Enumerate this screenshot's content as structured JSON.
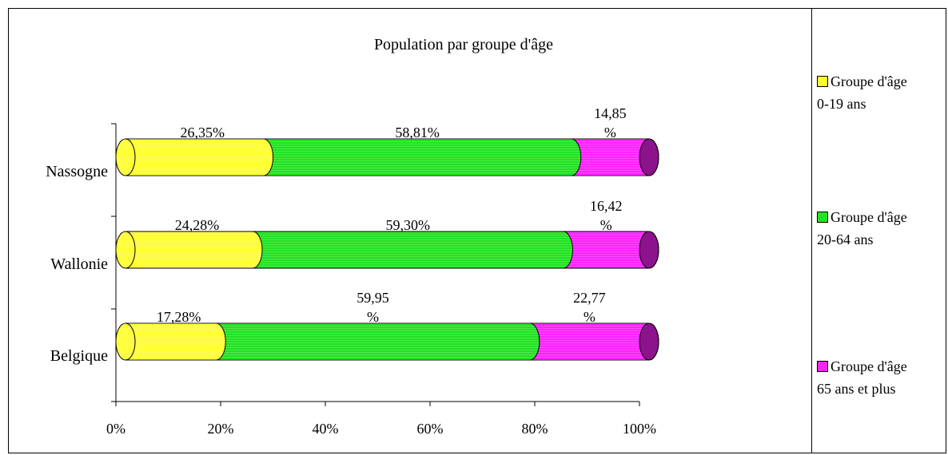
{
  "chart_data": {
    "type": "bar",
    "stacked": true,
    "orientation": "horizontal",
    "title": "Population par groupe d'âge",
    "categories": [
      "Nassogne",
      "Wallonie",
      "Belgique"
    ],
    "series": [
      {
        "name": "Groupe d'âge 0-19 ans",
        "legend_lines": [
          "Groupe d'âge",
          "0-19 ans"
        ],
        "color": "#ffff33",
        "values": [
          26.35,
          24.28,
          17.28
        ],
        "labels": [
          [
            "26,35%"
          ],
          [
            "24,28%"
          ],
          [
            "17,28%"
          ]
        ]
      },
      {
        "name": "Groupe d'âge 20-64 ans",
        "legend_lines": [
          "Groupe d'âge",
          "20-64 ans"
        ],
        "color": "#22e322",
        "values": [
          58.81,
          59.3,
          59.95
        ],
        "labels": [
          [
            "58,81%"
          ],
          [
            "59,30%"
          ],
          [
            "59,95",
            "%"
          ]
        ]
      },
      {
        "name": "Groupe d'âge 65 ans et plus",
        "legend_lines": [
          "Groupe d'âge",
          "65 ans et plus"
        ],
        "color": "#ff22ff",
        "values": [
          14.85,
          16.42,
          22.77
        ],
        "labels": [
          [
            "14,85",
            "%"
          ],
          [
            "16,42",
            "%"
          ],
          [
            "22,77",
            "%"
          ]
        ]
      }
    ],
    "xlim": [
      0,
      100
    ],
    "xticks": [
      "0%",
      "20%",
      "40%",
      "60%",
      "80%",
      "100%"
    ],
    "legend_position": "right",
    "grid": false
  }
}
